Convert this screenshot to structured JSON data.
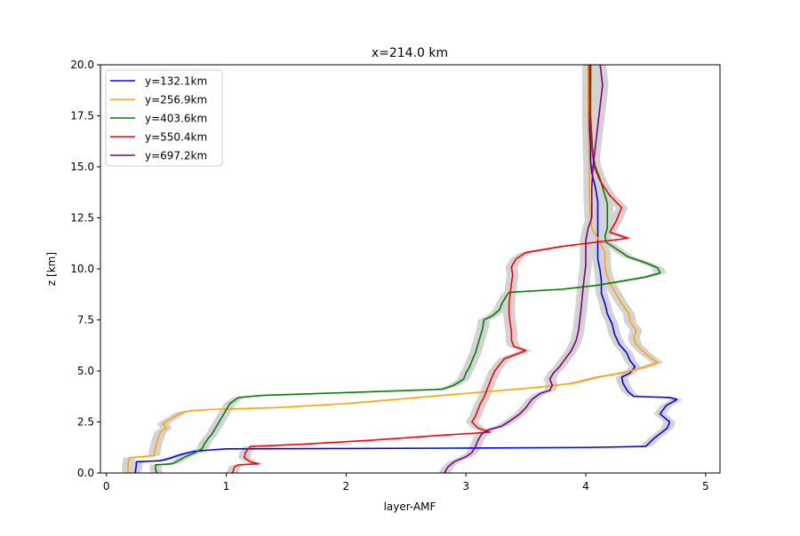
{
  "chart_data": {
    "type": "line",
    "title": "x=214.0 km",
    "xlabel": "layer-AMF",
    "ylabel": "z [km]",
    "xlim": [
      -0.05,
      5.12
    ],
    "ylim": [
      0,
      20
    ],
    "x_ticks": [
      0,
      1,
      2,
      3,
      4,
      5
    ],
    "x_tick_labels": [
      "0",
      "1",
      "2",
      "3",
      "4",
      "5"
    ],
    "y_ticks": [
      0,
      2.5,
      5,
      7.5,
      10,
      12.5,
      15,
      17.5,
      20
    ],
    "y_tick_labels": [
      "0.0",
      "2.5",
      "5.0",
      "7.5",
      "10.0",
      "12.5",
      "15.0",
      "17.5",
      "20.0"
    ],
    "grid": false,
    "legend_position": "top-left",
    "uncertainty_band_color": "#d3d3d3",
    "series": [
      {
        "name": "y=132.1km",
        "color": "#0000ff",
        "points": [
          [
            0.24,
            0
          ],
          [
            0.25,
            0.4
          ],
          [
            0.25,
            0.55
          ],
          [
            0.45,
            0.6
          ],
          [
            0.52,
            0.7
          ],
          [
            0.62,
            0.9
          ],
          [
            0.72,
            1.05
          ],
          [
            0.85,
            1.12
          ],
          [
            1.0,
            1.18
          ],
          [
            2.0,
            1.2
          ],
          [
            3.0,
            1.22
          ],
          [
            4.0,
            1.25
          ],
          [
            4.5,
            1.3
          ],
          [
            4.57,
            1.7
          ],
          [
            4.68,
            2.2
          ],
          [
            4.7,
            2.5
          ],
          [
            4.62,
            2.9
          ],
          [
            4.67,
            3.3
          ],
          [
            4.76,
            3.6
          ],
          [
            4.7,
            3.7
          ],
          [
            4.4,
            3.75
          ],
          [
            4.35,
            4.0
          ],
          [
            4.31,
            4.4
          ],
          [
            4.3,
            4.7
          ],
          [
            4.37,
            4.9
          ],
          [
            4.41,
            5.2
          ],
          [
            4.37,
            5.5
          ],
          [
            4.34,
            5.9
          ],
          [
            4.28,
            6.3
          ],
          [
            4.24,
            6.8
          ],
          [
            4.22,
            7.3
          ],
          [
            4.18,
            7.8
          ],
          [
            4.16,
            8.3
          ],
          [
            4.13,
            8.8
          ],
          [
            4.13,
            9.4
          ],
          [
            4.12,
            9.9
          ],
          [
            4.1,
            10.5
          ],
          [
            4.1,
            11.2
          ],
          [
            4.1,
            11.8
          ],
          [
            4.1,
            12.5
          ],
          [
            4.1,
            13.3
          ],
          [
            4.08,
            14.0
          ],
          [
            4.05,
            14.7
          ],
          [
            4.04,
            15.3
          ],
          [
            4.04,
            16.0
          ],
          [
            4.03,
            17.0
          ],
          [
            4.03,
            18.0
          ],
          [
            4.04,
            19.0
          ],
          [
            4.04,
            20.0
          ]
        ]
      },
      {
        "name": "y=256.9km",
        "color": "#ffa500",
        "points": [
          [
            0.18,
            0
          ],
          [
            0.18,
            0.4
          ],
          [
            0.19,
            0.75
          ],
          [
            0.3,
            0.8
          ],
          [
            0.4,
            0.85
          ],
          [
            0.4,
            1.0
          ],
          [
            0.42,
            1.5
          ],
          [
            0.45,
            2.0
          ],
          [
            0.5,
            2.2
          ],
          [
            0.47,
            2.4
          ],
          [
            0.52,
            2.6
          ],
          [
            0.58,
            2.8
          ],
          [
            0.62,
            2.95
          ],
          [
            0.7,
            3.05
          ],
          [
            0.9,
            3.12
          ],
          [
            1.4,
            3.2
          ],
          [
            2.0,
            3.4
          ],
          [
            2.6,
            3.7
          ],
          [
            3.2,
            4.0
          ],
          [
            3.6,
            4.2
          ],
          [
            3.9,
            4.4
          ],
          [
            4.1,
            4.7
          ],
          [
            4.3,
            4.9
          ],
          [
            4.5,
            5.2
          ],
          [
            4.6,
            5.4
          ],
          [
            4.53,
            5.7
          ],
          [
            4.47,
            6.0
          ],
          [
            4.42,
            6.3
          ],
          [
            4.4,
            6.6
          ],
          [
            4.42,
            7.0
          ],
          [
            4.37,
            7.4
          ],
          [
            4.36,
            7.8
          ],
          [
            4.3,
            8.3
          ],
          [
            4.25,
            8.8
          ],
          [
            4.2,
            9.3
          ],
          [
            4.17,
            9.8
          ],
          [
            4.16,
            10.2
          ],
          [
            4.16,
            10.8
          ],
          [
            4.1,
            11.5
          ],
          [
            4.05,
            12.0
          ],
          [
            4.04,
            12.5
          ],
          [
            4.03,
            13.5
          ],
          [
            4.03,
            15.0
          ],
          [
            4.02,
            17.0
          ],
          [
            4.02,
            18.5
          ],
          [
            4.02,
            20.0
          ]
        ]
      },
      {
        "name": "y=403.6km",
        "color": "#008000",
        "points": [
          [
            0.42,
            0
          ],
          [
            0.41,
            0.2
          ],
          [
            0.41,
            0.4
          ],
          [
            0.55,
            0.45
          ],
          [
            0.6,
            0.6
          ],
          [
            0.66,
            0.8
          ],
          [
            0.74,
            1.0
          ],
          [
            0.8,
            1.2
          ],
          [
            0.82,
            1.45
          ],
          [
            0.85,
            1.7
          ],
          [
            0.88,
            1.9
          ],
          [
            0.9,
            2.1
          ],
          [
            0.92,
            2.3
          ],
          [
            0.94,
            2.5
          ],
          [
            0.97,
            2.8
          ],
          [
            1.0,
            3.1
          ],
          [
            1.03,
            3.4
          ],
          [
            1.1,
            3.7
          ],
          [
            1.3,
            3.8
          ],
          [
            1.8,
            3.9
          ],
          [
            2.8,
            4.1
          ],
          [
            2.9,
            4.3
          ],
          [
            2.98,
            4.6
          ],
          [
            3.0,
            4.9
          ],
          [
            3.03,
            5.2
          ],
          [
            3.05,
            5.5
          ],
          [
            3.08,
            5.9
          ],
          [
            3.1,
            6.3
          ],
          [
            3.12,
            6.7
          ],
          [
            3.14,
            7.1
          ],
          [
            3.15,
            7.5
          ],
          [
            3.22,
            7.7
          ],
          [
            3.28,
            8.0
          ],
          [
            3.3,
            8.3
          ],
          [
            3.33,
            8.6
          ],
          [
            3.36,
            8.85
          ],
          [
            3.5,
            8.9
          ],
          [
            3.8,
            9.0
          ],
          [
            4.1,
            9.2
          ],
          [
            4.3,
            9.4
          ],
          [
            4.5,
            9.6
          ],
          [
            4.62,
            9.8
          ],
          [
            4.6,
            10.05
          ],
          [
            4.5,
            10.3
          ],
          [
            4.35,
            10.6
          ],
          [
            4.25,
            11.0
          ],
          [
            4.17,
            11.3
          ],
          [
            4.16,
            11.6
          ],
          [
            4.18,
            12.0
          ],
          [
            4.18,
            12.5
          ],
          [
            4.18,
            13.2
          ],
          [
            4.15,
            13.8
          ],
          [
            4.12,
            14.4
          ],
          [
            4.08,
            15.0
          ],
          [
            4.06,
            15.6
          ],
          [
            4.05,
            16.5
          ],
          [
            4.04,
            17.5
          ],
          [
            4.04,
            18.5
          ],
          [
            4.04,
            20.0
          ]
        ]
      },
      {
        "name": "y=550.4km",
        "color": "#ff0000",
        "points": [
          [
            1.05,
            0
          ],
          [
            1.07,
            0.3
          ],
          [
            1.1,
            0.4
          ],
          [
            1.27,
            0.45
          ],
          [
            1.2,
            0.55
          ],
          [
            1.15,
            0.75
          ],
          [
            1.16,
            1.0
          ],
          [
            1.2,
            1.3
          ],
          [
            1.6,
            1.4
          ],
          [
            2.2,
            1.6
          ],
          [
            2.8,
            1.85
          ],
          [
            3.2,
            2.0
          ],
          [
            3.1,
            2.2
          ],
          [
            3.05,
            2.5
          ],
          [
            3.08,
            2.8
          ],
          [
            3.1,
            3.1
          ],
          [
            3.12,
            3.4
          ],
          [
            3.15,
            3.7
          ],
          [
            3.17,
            4.0
          ],
          [
            3.19,
            4.3
          ],
          [
            3.21,
            4.6
          ],
          [
            3.24,
            5.0
          ],
          [
            3.28,
            5.3
          ],
          [
            3.32,
            5.6
          ],
          [
            3.5,
            6.0
          ],
          [
            3.4,
            6.2
          ],
          [
            3.38,
            6.5
          ],
          [
            3.38,
            6.9
          ],
          [
            3.37,
            7.3
          ],
          [
            3.36,
            7.8
          ],
          [
            3.36,
            8.3
          ],
          [
            3.37,
            8.8
          ],
          [
            3.38,
            9.3
          ],
          [
            3.39,
            9.7
          ],
          [
            3.38,
            10.1
          ],
          [
            3.42,
            10.5
          ],
          [
            3.5,
            10.8
          ],
          [
            3.8,
            11.1
          ],
          [
            4.35,
            11.5
          ],
          [
            4.2,
            11.8
          ],
          [
            4.25,
            12.3
          ],
          [
            4.3,
            13.0
          ],
          [
            4.2,
            13.6
          ],
          [
            4.12,
            14.3
          ],
          [
            4.07,
            15.0
          ],
          [
            4.05,
            16.0
          ],
          [
            4.04,
            17.0
          ],
          [
            4.03,
            18.5
          ],
          [
            4.03,
            20.0
          ]
        ]
      },
      {
        "name": "y=697.2km",
        "color": "#800080",
        "points": [
          [
            2.82,
            0
          ],
          [
            2.85,
            0.3
          ],
          [
            2.9,
            0.55
          ],
          [
            3.0,
            0.8
          ],
          [
            3.05,
            1.0
          ],
          [
            3.08,
            1.3
          ],
          [
            3.1,
            1.6
          ],
          [
            3.13,
            1.9
          ],
          [
            3.18,
            2.1
          ],
          [
            3.3,
            2.3
          ],
          [
            3.38,
            2.6
          ],
          [
            3.45,
            2.9
          ],
          [
            3.5,
            3.2
          ],
          [
            3.55,
            3.6
          ],
          [
            3.62,
            3.9
          ],
          [
            3.7,
            4.05
          ],
          [
            3.72,
            4.3
          ],
          [
            3.7,
            4.6
          ],
          [
            3.73,
            4.9
          ],
          [
            3.78,
            5.2
          ],
          [
            3.83,
            5.6
          ],
          [
            3.88,
            6.0
          ],
          [
            3.92,
            6.5
          ],
          [
            3.94,
            7.0
          ],
          [
            3.95,
            7.5
          ],
          [
            3.96,
            8.0
          ],
          [
            3.97,
            8.6
          ],
          [
            3.98,
            9.2
          ],
          [
            3.99,
            9.7
          ],
          [
            4.0,
            10.2
          ],
          [
            4.0,
            10.8
          ],
          [
            4.0,
            11.4
          ],
          [
            4.02,
            12.0
          ],
          [
            4.05,
            12.5
          ],
          [
            4.05,
            13.3
          ],
          [
            4.05,
            14.0
          ],
          [
            4.06,
            15.0
          ],
          [
            4.08,
            16.0
          ],
          [
            4.1,
            17.0
          ],
          [
            4.12,
            18.0
          ],
          [
            4.14,
            19.0
          ],
          [
            4.12,
            20.0
          ]
        ]
      }
    ]
  }
}
